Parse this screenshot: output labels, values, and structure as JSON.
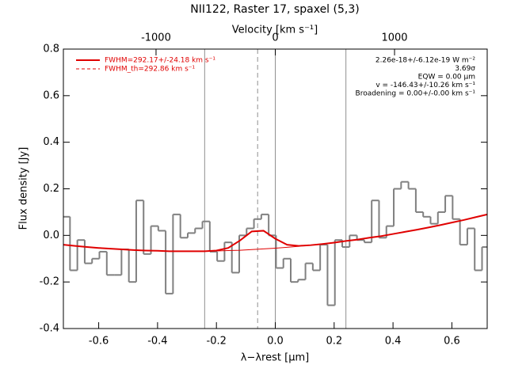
{
  "chart_data": {
    "type": "line",
    "title": "NII122, Raster 17, spaxel (5,3)",
    "xlabel": "λ−λrest [μm]",
    "ylabel": "Flux density [Jy]",
    "x2label": "Velocity [km s⁻¹]",
    "xlim": [
      -0.72,
      0.72
    ],
    "ylim": [
      -0.4,
      0.8
    ],
    "x2lim": [
      -1777,
      1777
    ],
    "xticks": [
      -0.6,
      -0.4,
      -0.2,
      {
        "value": 0,
        "label": "0.0"
      },
      0.2,
      0.4,
      0.6
    ],
    "yticks": [
      -0.4,
      -0.2,
      {
        "value": 0,
        "label": "0.0"
      },
      0.2,
      0.4,
      0.6,
      0.8
    ],
    "x2ticks": [
      -1000,
      0,
      1000
    ],
    "vlines": [
      -0.24,
      0,
      0.24
    ],
    "dashed_vline": -0.06,
    "vline_color": "#909090",
    "legend": [
      {
        "label": "FWHM=292.17+/-24.18 km s⁻¹",
        "color": "#e00000",
        "dash": false
      },
      {
        "label": "FWHM_th=292.86 km s⁻¹",
        "color": "#e00000",
        "dash": true
      }
    ],
    "annotations": [
      "2.26e-18+/-6.12e-19 W m⁻²",
      "3.69σ",
      "EQW = 0.00 μm",
      "v = -146.43+/-10.26 km s⁻¹",
      "Broadening = 0.00+/-0.00 km s⁻¹"
    ],
    "series": [
      {
        "style": "steps",
        "color": "#808080",
        "x": [
          -0.71,
          -0.685,
          -0.66,
          -0.635,
          -0.61,
          -0.585,
          -0.56,
          -0.535,
          -0.51,
          -0.485,
          -0.46,
          -0.435,
          -0.41,
          -0.385,
          -0.36,
          -0.335,
          -0.31,
          -0.285,
          -0.26,
          -0.235,
          -0.21,
          -0.185,
          -0.16,
          -0.135,
          -0.11,
          -0.085,
          -0.06,
          -0.035,
          -0.01,
          0.015,
          0.04,
          0.065,
          0.09,
          0.115,
          0.14,
          0.165,
          0.19,
          0.215,
          0.24,
          0.265,
          0.29,
          0.315,
          0.34,
          0.365,
          0.39,
          0.415,
          0.44,
          0.465,
          0.49,
          0.515,
          0.54,
          0.565,
          0.59,
          0.615,
          0.64,
          0.665,
          0.69,
          0.715
        ],
        "values": [
          0.08,
          -0.15,
          -0.02,
          -0.12,
          -0.1,
          -0.07,
          -0.17,
          -0.17,
          -0.06,
          -0.2,
          0.15,
          -0.08,
          0.04,
          0.02,
          -0.25,
          0.09,
          -0.01,
          0.01,
          0.03,
          0.06,
          -0.07,
          -0.11,
          -0.03,
          -0.16,
          0.0,
          0.03,
          0.07,
          0.09,
          0.0,
          -0.14,
          -0.1,
          -0.2,
          -0.19,
          -0.12,
          -0.15,
          -0.04,
          -0.3,
          -0.02,
          -0.05,
          0.0,
          -0.02,
          -0.03,
          0.15,
          -0.01,
          0.04,
          0.2,
          0.23,
          0.2,
          0.1,
          0.08,
          0.05,
          0.1,
          0.17,
          0.07,
          -0.04,
          0.03,
          -0.15,
          -0.05
        ]
      },
      {
        "style": "fit",
        "color": "#e00000",
        "x": [
          -0.72,
          -0.68,
          -0.64,
          -0.6,
          -0.56,
          -0.52,
          -0.48,
          -0.44,
          -0.4,
          -0.36,
          -0.32,
          -0.28,
          -0.24,
          -0.2,
          -0.16,
          -0.12,
          -0.08,
          -0.04,
          0.0,
          0.04,
          0.08,
          0.12,
          0.16,
          0.2,
          0.24,
          0.28,
          0.32,
          0.36,
          0.4,
          0.44,
          0.48,
          0.52,
          0.56,
          0.6,
          0.64,
          0.68,
          0.72
        ],
        "values": [
          -0.04,
          -0.045,
          -0.05,
          -0.054,
          -0.057,
          -0.06,
          -0.063,
          -0.065,
          -0.066,
          -0.068,
          -0.068,
          -0.068,
          -0.068,
          -0.065,
          -0.054,
          -0.022,
          0.017,
          0.02,
          -0.014,
          -0.04,
          -0.045,
          -0.042,
          -0.037,
          -0.031,
          -0.024,
          -0.018,
          -0.01,
          -0.003,
          0.006,
          0.015,
          0.024,
          0.034,
          0.044,
          0.055,
          0.066,
          0.078,
          0.09
        ]
      },
      {
        "style": "thin",
        "color": "#e00000",
        "x": [
          -0.24,
          -0.2,
          -0.16,
          -0.12,
          -0.08,
          -0.04,
          0.0,
          0.04,
          0.08
        ],
        "values": [
          -0.068,
          -0.067,
          -0.065,
          -0.064,
          -0.061,
          -0.058,
          -0.055,
          -0.051,
          -0.047
        ]
      }
    ]
  }
}
